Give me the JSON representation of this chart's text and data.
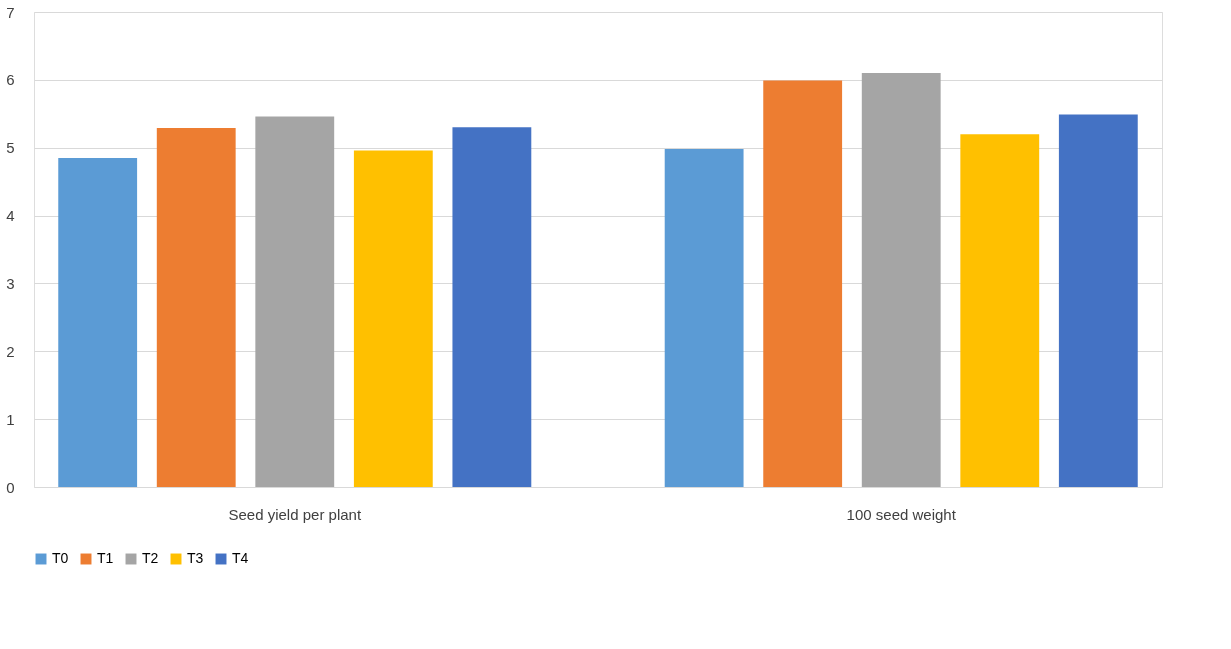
{
  "chart_data": {
    "type": "bar",
    "categories": [
      "Seed yield per plant",
      "100 seed weight"
    ],
    "series": [
      {
        "name": "T0",
        "color": "#5b9bd5",
        "values": [
          4.85,
          4.98
        ]
      },
      {
        "name": "T1",
        "color": "#ed7d31",
        "values": [
          5.29,
          5.99
        ]
      },
      {
        "name": "T2",
        "color": "#a5a5a5",
        "values": [
          5.46,
          6.1
        ]
      },
      {
        "name": "T3",
        "color": "#ffc000",
        "values": [
          4.96,
          5.2
        ]
      },
      {
        "name": "T4",
        "color": "#4472c4",
        "values": [
          5.3,
          5.49
        ]
      }
    ],
    "ylim": [
      0,
      7
    ],
    "yticks": [
      0,
      1,
      2,
      3,
      4,
      5,
      6,
      7
    ],
    "grid": "y",
    "legend": "bottom"
  }
}
